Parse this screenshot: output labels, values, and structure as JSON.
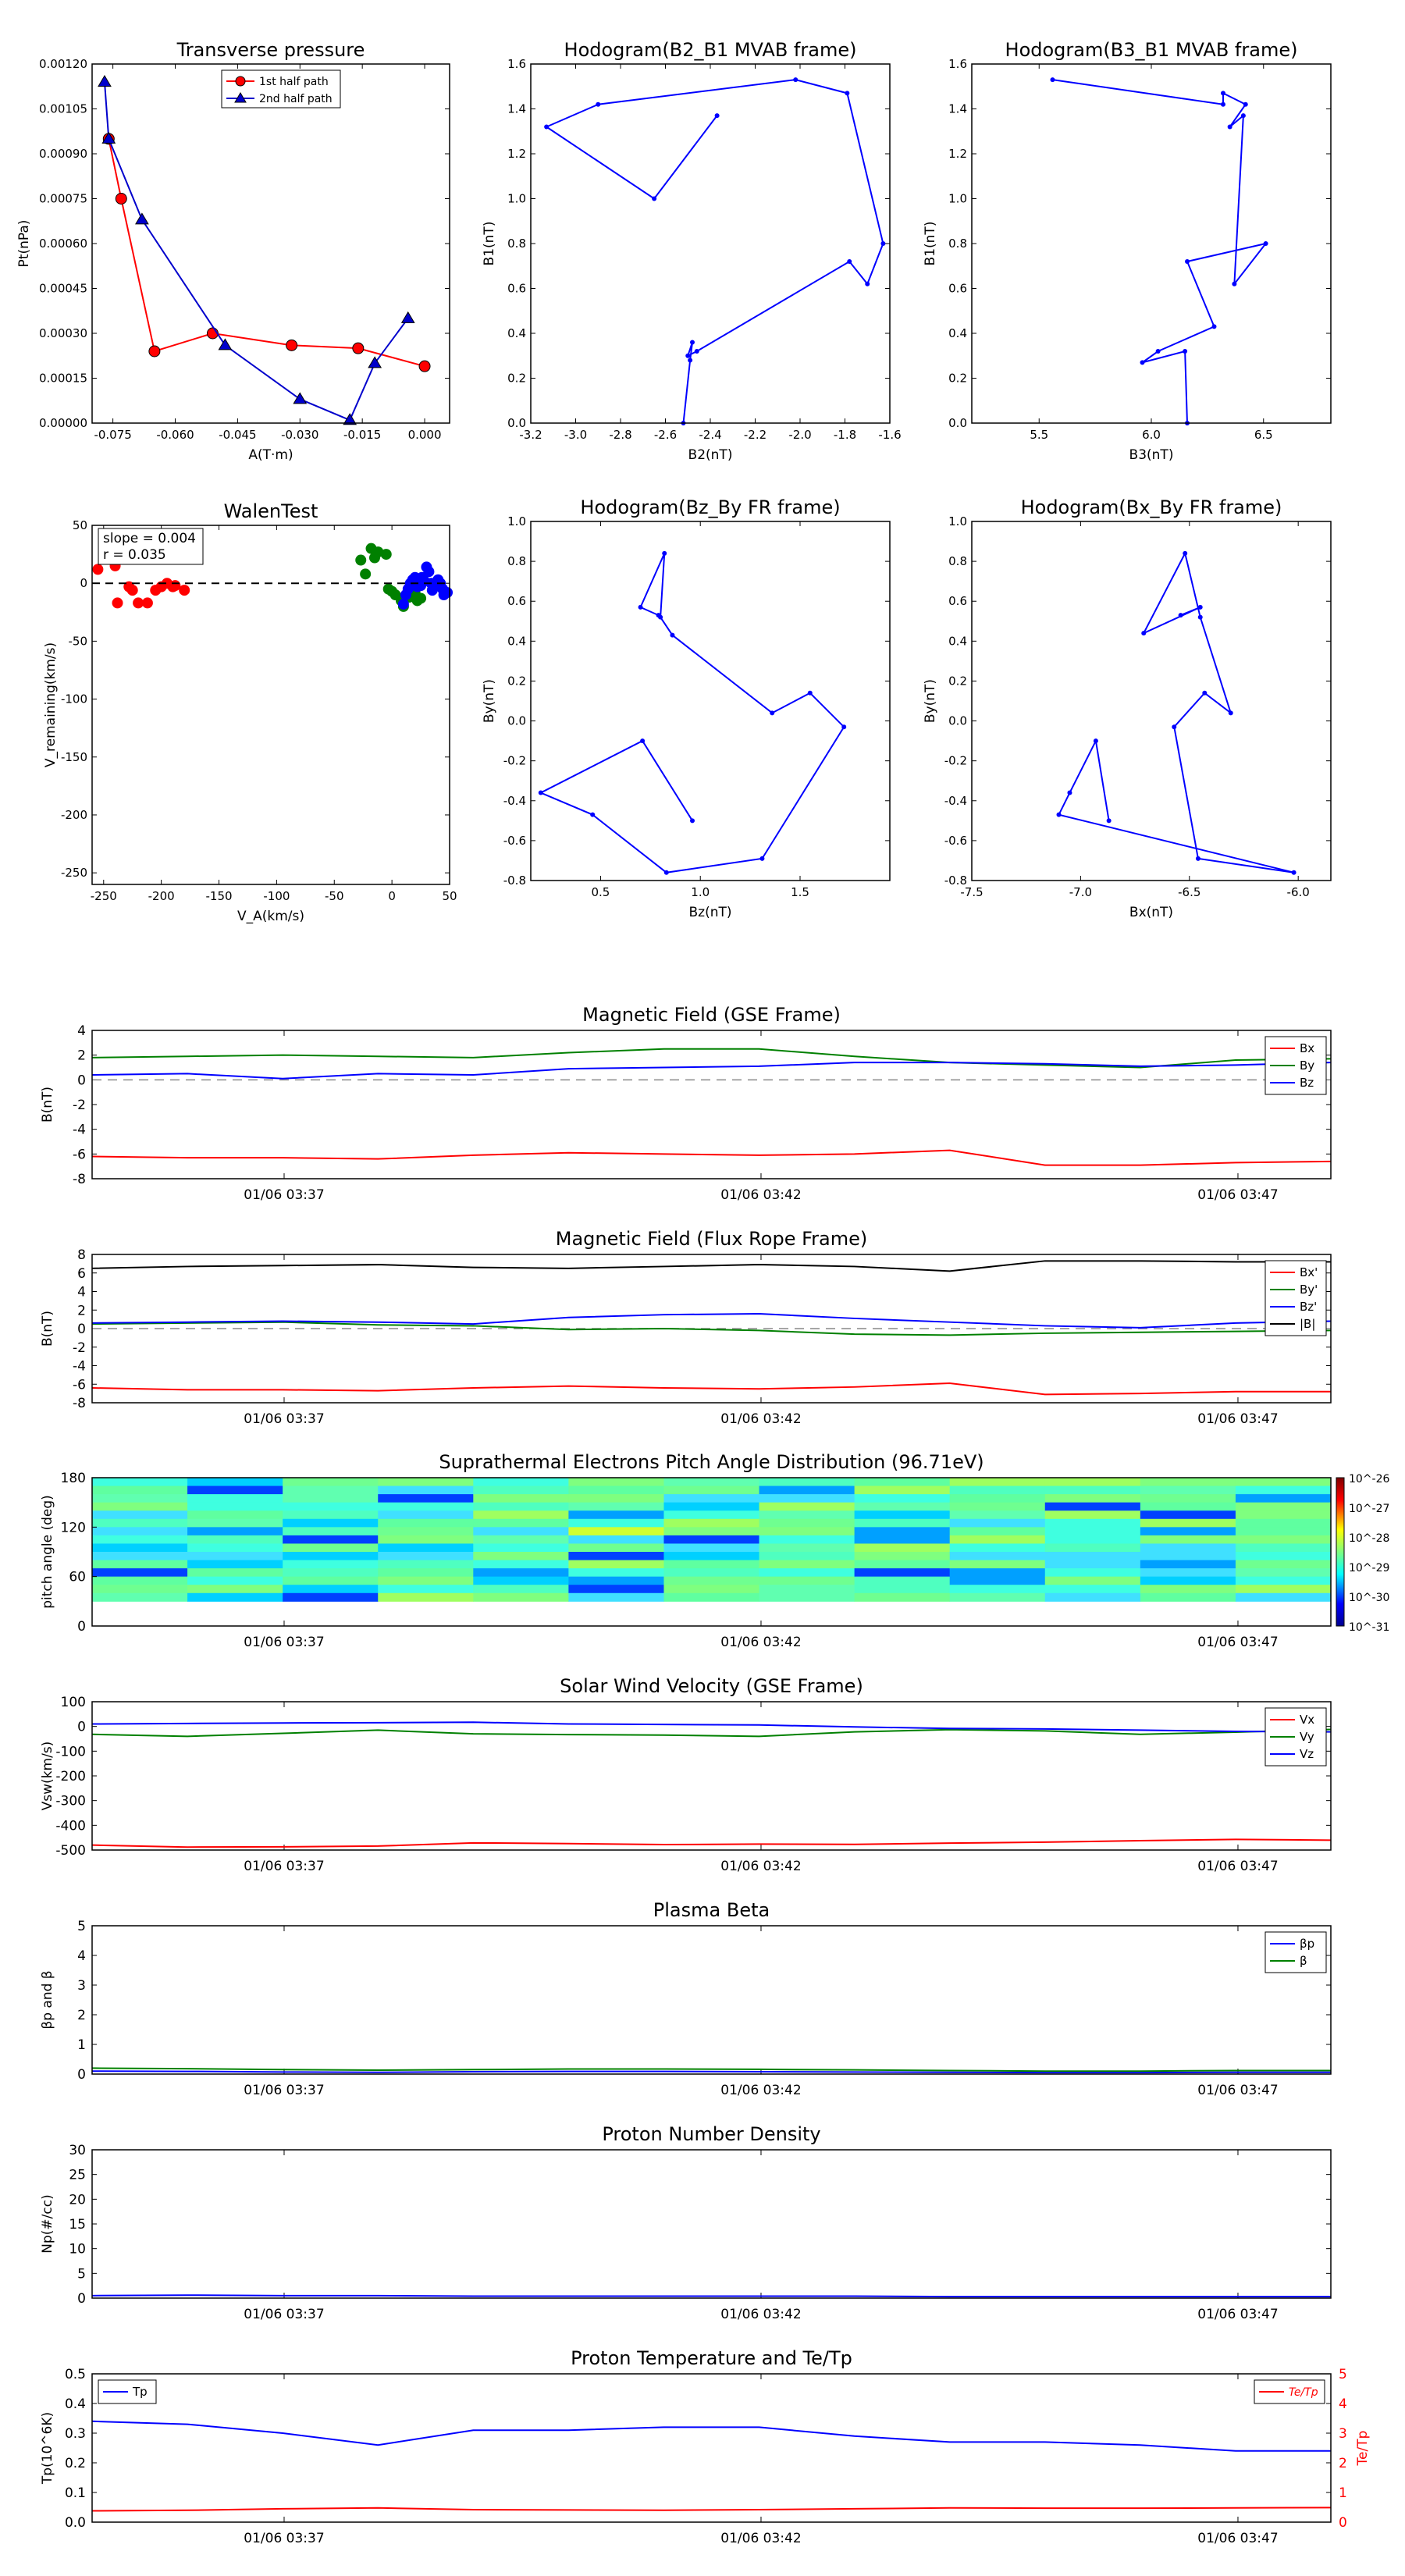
{
  "timeticks": [
    "01/06 03:37",
    "01/06 03:42",
    "01/06 03:47"
  ],
  "chart_data": [
    {
      "id": "tp",
      "type": "scatter",
      "title": "Transverse pressure",
      "xlabel": "A(T·m)",
      "ylabel": "Pt(nPa)",
      "xlim": [
        -0.08,
        0.006
      ],
      "ylim": [
        0,
        0.0012
      ],
      "xticks": [
        "-0.075",
        "-0.060",
        "-0.045",
        "-0.030",
        "-0.015",
        "0.000"
      ],
      "yticks": [
        "0.00000",
        "0.00015",
        "0.00030",
        "0.00045",
        "0.00060",
        "0.00075",
        "0.00090",
        "0.00105",
        "0.00120"
      ],
      "legend": "top-center",
      "series": [
        {
          "name": "1st half path",
          "color": "#ff0000",
          "marker": "circle",
          "x": [
            -0.076,
            -0.073,
            -0.065,
            -0.051,
            -0.032,
            -0.016,
            0.0
          ],
          "y": [
            0.00095,
            0.00075,
            0.00024,
            0.0003,
            0.00026,
            0.00025,
            0.00019
          ]
        },
        {
          "name": "2nd half path",
          "color": "#0000cc",
          "marker": "triangle",
          "x": [
            -0.077,
            -0.076,
            -0.068,
            -0.048,
            -0.03,
            -0.018,
            -0.012,
            -0.004
          ],
          "y": [
            0.00114,
            0.00095,
            0.00068,
            0.00026,
            8e-05,
            1e-05,
            0.0002,
            0.00035
          ]
        }
      ]
    },
    {
      "id": "h1",
      "type": "line",
      "title": "Hodogram(B2_B1 MVAB frame)",
      "xlabel": "B2(nT)",
      "ylabel": "B1(nT)",
      "xlim": [
        -3.2,
        -1.6
      ],
      "ylim": [
        0,
        1.6
      ],
      "xticks": [
        "-3.2",
        "-3.0",
        "-2.8",
        "-2.6",
        "-2.4",
        "-2.2",
        "-2.0",
        "-1.8",
        "-1.6"
      ],
      "yticks": [
        "0.0",
        "0.2",
        "0.4",
        "0.6",
        "0.8",
        "1.0",
        "1.2",
        "1.4",
        "1.6"
      ],
      "series": [
        {
          "color": "#0000ff",
          "x": [
            -2.52,
            -2.49,
            -2.48,
            -2.5,
            -2.46,
            -1.78,
            -1.7,
            -1.63,
            -1.79,
            -2.02,
            -2.9,
            -3.13,
            -2.65,
            -2.37
          ],
          "y": [
            0.0,
            0.28,
            0.36,
            0.3,
            0.32,
            0.72,
            0.62,
            0.8,
            1.47,
            1.53,
            1.42,
            1.32,
            1.0,
            1.37
          ]
        }
      ]
    },
    {
      "id": "h2",
      "type": "line",
      "title": "Hodogram(B3_B1 MVAB frame)",
      "xlabel": "B3(nT)",
      "ylabel": "B1(nT)",
      "xlim": [
        5.2,
        6.8
      ],
      "ylim": [
        0,
        1.6
      ],
      "xticks": [
        "5.5",
        "6.0",
        "6.5"
      ],
      "yticks": [
        "0.0",
        "0.2",
        "0.4",
        "0.6",
        "0.8",
        "1.0",
        "1.2",
        "1.4",
        "1.6"
      ],
      "series": [
        {
          "color": "#0000ff",
          "x": [
            6.16,
            6.15,
            5.96,
            6.03,
            6.28,
            6.16,
            6.51,
            6.37,
            6.41,
            6.35,
            6.42,
            6.32,
            6.32,
            5.56
          ],
          "y": [
            0.0,
            0.32,
            0.27,
            0.32,
            0.43,
            0.72,
            0.8,
            0.62,
            1.37,
            1.32,
            1.42,
            1.47,
            1.42,
            1.53
          ]
        }
      ]
    },
    {
      "id": "walen",
      "type": "scatter",
      "title": "WalenTest",
      "xlabel": "V_A(km/s)",
      "ylabel": "V_remaining(km/s)",
      "xlim": [
        -260,
        50
      ],
      "ylim": [
        -260,
        50
      ],
      "xticks": [
        "-250",
        "-200",
        "-150",
        "-100",
        "-50",
        "0",
        "50"
      ],
      "yticks": [
        "50",
        "0",
        "-50",
        "-100",
        "-150",
        "-200",
        "-250"
      ],
      "annotation": [
        "slope = 0.004",
        "r = 0.035"
      ],
      "series": [
        {
          "color": "#ff0000",
          "x": [
            -255,
            -240,
            -238,
            -228,
            -225,
            -220,
            -212,
            -205,
            -200,
            -195,
            -190,
            -188,
            -180
          ],
          "y": [
            12,
            15,
            -17,
            -3,
            -6,
            -17,
            -17,
            -6,
            -3,
            0,
            -3,
            -2,
            -6
          ]
        },
        {
          "color": "#008000",
          "x": [
            -27,
            -23,
            -18,
            -15,
            -12,
            -5,
            -3,
            0,
            3,
            8,
            10,
            15,
            20,
            22,
            25
          ],
          "y": [
            20,
            8,
            30,
            22,
            27,
            25,
            -5,
            -7,
            -10,
            -15,
            -20,
            -12,
            -8,
            -15,
            -13
          ]
        },
        {
          "color": "#0000ff",
          "x": [
            10,
            12,
            14,
            16,
            18,
            20,
            22,
            24,
            25,
            26,
            28,
            30,
            32,
            34,
            35,
            38,
            40,
            42,
            44,
            45,
            48
          ],
          "y": [
            -18,
            -10,
            -5,
            0,
            3,
            5,
            -3,
            0,
            -2,
            5,
            2,
            14,
            10,
            0,
            -6,
            -2,
            3,
            0,
            -5,
            -10,
            -8
          ]
        }
      ]
    },
    {
      "id": "h3",
      "type": "line",
      "title": "Hodogram(Bz_By FR frame)",
      "xlabel": "Bz(nT)",
      "ylabel": "By(nT)",
      "xlim": [
        0.15,
        1.95
      ],
      "ylim": [
        -0.8,
        1.0
      ],
      "xticks": [
        "0.5",
        "1.0",
        "1.5"
      ],
      "yticks": [
        "1.0",
        "0.8",
        "0.6",
        "0.4",
        "0.2",
        "0.0",
        "-0.2",
        "-0.4",
        "-0.6",
        "-0.8"
      ],
      "series": [
        {
          "color": "#0000ff",
          "x": [
            0.96,
            0.71,
            0.2,
            0.46,
            0.83,
            1.31,
            1.72,
            1.55,
            1.36,
            0.86,
            0.8,
            0.82,
            0.7,
            0.79
          ],
          "y": [
            -0.5,
            -0.1,
            -0.36,
            -0.47,
            -0.76,
            -0.69,
            -0.03,
            0.14,
            0.04,
            0.43,
            0.52,
            0.84,
            0.57,
            0.53
          ]
        }
      ]
    },
    {
      "id": "h4",
      "type": "line",
      "title": "Hodogram(Bx_By FR frame)",
      "xlabel": "Bx(nT)",
      "ylabel": "By(nT)",
      "xlim": [
        -7.5,
        -5.85
      ],
      "ylim": [
        -0.8,
        1.0
      ],
      "xticks": [
        "-7.5",
        "-7.0",
        "-6.5",
        "-6.0"
      ],
      "yticks": [
        "1.0",
        "0.8",
        "0.6",
        "0.4",
        "0.2",
        "0.0",
        "-0.2",
        "-0.4",
        "-0.6",
        "-0.8"
      ],
      "series": [
        {
          "color": "#0000ff",
          "x": [
            -6.87,
            -6.93,
            -7.05,
            -7.1,
            -6.02,
            -6.46,
            -6.57,
            -6.43,
            -6.31,
            -6.45,
            -6.52,
            -6.71,
            -6.45,
            -6.54
          ],
          "y": [
            -0.5,
            -0.1,
            -0.36,
            -0.47,
            -0.76,
            -0.69,
            -0.03,
            0.14,
            0.04,
            0.52,
            0.84,
            0.44,
            0.57,
            0.53
          ]
        }
      ]
    },
    {
      "id": "mag_gse",
      "type": "line",
      "title": "Magnetic Field (GSE Frame)",
      "ylabel": "B(nT)",
      "ylim": [
        -8,
        4
      ],
      "legend": "top-right",
      "yticks": [
        "4",
        "2",
        "0",
        "-2",
        "-4",
        "-6",
        "-8"
      ],
      "zero_line": true,
      "x": [
        0,
        1,
        2,
        3,
        4,
        5,
        6,
        7,
        8,
        9,
        10,
        11,
        12,
        13
      ],
      "series": [
        {
          "name": "Bx",
          "color": "#ff0000",
          "values": [
            -6.2,
            -6.3,
            -6.3,
            -6.4,
            -6.1,
            -5.9,
            -6.0,
            -6.1,
            -6.0,
            -5.7,
            -6.9,
            -6.9,
            -6.7,
            -6.6
          ]
        },
        {
          "name": "By",
          "color": "#008000",
          "values": [
            1.8,
            1.9,
            2.0,
            1.9,
            1.8,
            2.2,
            2.5,
            2.5,
            1.9,
            1.4,
            1.2,
            1.0,
            1.6,
            1.7
          ]
        },
        {
          "name": "Bz",
          "color": "#0000ff",
          "values": [
            0.4,
            0.5,
            0.1,
            0.5,
            0.4,
            0.9,
            1.0,
            1.1,
            1.4,
            1.4,
            1.3,
            1.1,
            1.2,
            1.4
          ]
        }
      ]
    },
    {
      "id": "mag_fr",
      "type": "line",
      "title": "Magnetic Field (Flux Rope Frame)",
      "ylabel": "B(nT)",
      "ylim": [
        -8,
        8
      ],
      "legend": "top-right",
      "yticks": [
        "8",
        "6",
        "4",
        "2",
        "0",
        "-2",
        "-4",
        "-6",
        "-8"
      ],
      "zero_line": true,
      "x": [
        0,
        1,
        2,
        3,
        4,
        5,
        6,
        7,
        8,
        9,
        10,
        11,
        12,
        13
      ],
      "series": [
        {
          "name": "Bx'",
          "color": "#ff0000",
          "values": [
            -6.4,
            -6.6,
            -6.6,
            -6.7,
            -6.4,
            -6.2,
            -6.4,
            -6.5,
            -6.3,
            -5.9,
            -7.1,
            -7.0,
            -6.8,
            -6.8
          ]
        },
        {
          "name": "By'",
          "color": "#008000",
          "values": [
            0.5,
            0.6,
            0.7,
            0.4,
            0.3,
            -0.1,
            0.0,
            -0.2,
            -0.6,
            -0.7,
            -0.5,
            -0.4,
            -0.3,
            -0.2
          ]
        },
        {
          "name": "Bz'",
          "color": "#0000ff",
          "values": [
            0.6,
            0.7,
            0.8,
            0.7,
            0.5,
            1.2,
            1.5,
            1.6,
            1.1,
            0.7,
            0.3,
            0.1,
            0.6,
            0.8
          ]
        },
        {
          "name": "|B|",
          "color": "#000000",
          "values": [
            6.5,
            6.7,
            6.8,
            6.9,
            6.6,
            6.5,
            6.7,
            6.9,
            6.7,
            6.2,
            7.3,
            7.3,
            7.2,
            7.2
          ]
        }
      ]
    },
    {
      "id": "pad",
      "type": "heatmap",
      "title": "Suprathermal Electrons Pitch Angle Distribution (96.71eV)",
      "ylabel": "pitch angle (deg)",
      "ylim": [
        0,
        180
      ],
      "yticks": [
        "180",
        "120",
        "60",
        "0"
      ],
      "colorbar_labels": [
        "10^-26",
        "10^-27",
        "10^-28",
        "10^-29",
        "10^-30",
        "10^-31"
      ],
      "n_time_bins": 13,
      "n_angle_bins": 18,
      "empty_below_deg": 30
    },
    {
      "id": "vsw",
      "type": "line",
      "title": "Solar Wind Velocity (GSE Frame)",
      "ylabel": "Vsw(km/s)",
      "ylim": [
        -500,
        100
      ],
      "legend": "top-right",
      "yticks": [
        "100",
        "0",
        "-100",
        "-200",
        "-300",
        "-400",
        "-500"
      ],
      "x": [
        0,
        1,
        2,
        3,
        4,
        5,
        6,
        7,
        8,
        9,
        10,
        11,
        12,
        13
      ],
      "series": [
        {
          "name": "Vx",
          "color": "#ff0000",
          "values": [
            -480,
            -488,
            -487,
            -484,
            -471,
            -474,
            -478,
            -476,
            -477,
            -472,
            -468,
            -462,
            -457,
            -460
          ]
        },
        {
          "name": "Vy",
          "color": "#008000",
          "values": [
            -32,
            -40,
            -28,
            -15,
            -30,
            -33,
            -35,
            -40,
            -22,
            -13,
            -18,
            -32,
            -23,
            -12
          ]
        },
        {
          "name": "Vz",
          "color": "#0000ff",
          "values": [
            10,
            12,
            14,
            15,
            17,
            10,
            8,
            6,
            -2,
            -8,
            -10,
            -15,
            -20,
            -22
          ]
        }
      ]
    },
    {
      "id": "beta",
      "type": "line",
      "title": "Plasma Beta",
      "ylabel": "βp and β",
      "ylim": [
        0,
        5
      ],
      "legend": "top-right",
      "yticks": [
        "5",
        "4",
        "3",
        "2",
        "1",
        "0"
      ],
      "x": [
        0,
        1,
        2,
        3,
        4,
        5,
        6,
        7,
        8,
        9,
        10,
        11,
        12,
        13
      ],
      "series": [
        {
          "name": "βp",
          "color": "#0000ff",
          "values": [
            0.1,
            0.09,
            0.07,
            0.06,
            0.08,
            0.09,
            0.09,
            0.08,
            0.07,
            0.06,
            0.05,
            0.05,
            0.06,
            0.06
          ]
        },
        {
          "name": "β",
          "color": "#008000",
          "values": [
            0.2,
            0.18,
            0.15,
            0.13,
            0.15,
            0.17,
            0.17,
            0.16,
            0.14,
            0.12,
            0.1,
            0.1,
            0.12,
            0.12
          ]
        }
      ]
    },
    {
      "id": "np",
      "type": "line",
      "title": "Proton Number Density",
      "ylabel": "Np(#/cc)",
      "ylim": [
        0,
        30
      ],
      "yticks": [
        "30",
        "25",
        "20",
        "15",
        "10",
        "5",
        "0"
      ],
      "x": [
        0,
        1,
        2,
        3,
        4,
        5,
        6,
        7,
        8,
        9,
        10,
        11,
        12,
        13
      ],
      "series": [
        {
          "name": "Np",
          "color": "#0000ff",
          "values": [
            0.5,
            0.6,
            0.5,
            0.5,
            0.4,
            0.4,
            0.4,
            0.4,
            0.4,
            0.3,
            0.3,
            0.3,
            0.3,
            0.3
          ]
        }
      ]
    },
    {
      "id": "tp_ratio",
      "type": "line",
      "title": "Proton Temperature and Te/Tp",
      "ylabel": "Tp(10^6K)",
      "ylim": [
        0,
        0.5
      ],
      "y2label": "Te/Tp",
      "y2lim": [
        0,
        5
      ],
      "yticks": [
        "0.5",
        "0.4",
        "0.3",
        "0.2",
        "0.1",
        "0.0"
      ],
      "y2ticks": [
        "5",
        "4",
        "3",
        "2",
        "1",
        "0"
      ],
      "x": [
        0,
        1,
        2,
        3,
        4,
        5,
        6,
        7,
        8,
        9,
        10,
        11,
        12,
        13
      ],
      "series": [
        {
          "name": "Tp",
          "color": "#0000ff",
          "axis": "left",
          "values": [
            0.34,
            0.33,
            0.3,
            0.26,
            0.31,
            0.31,
            0.32,
            0.32,
            0.29,
            0.27,
            0.27,
            0.26,
            0.24,
            0.24
          ]
        },
        {
          "name": "Te/Tp",
          "color": "#ff0000",
          "axis": "right",
          "values": [
            0.38,
            0.4,
            0.45,
            0.48,
            0.42,
            0.41,
            0.4,
            0.42,
            0.45,
            0.48,
            0.47,
            0.47,
            0.48,
            0.49
          ]
        }
      ]
    }
  ]
}
